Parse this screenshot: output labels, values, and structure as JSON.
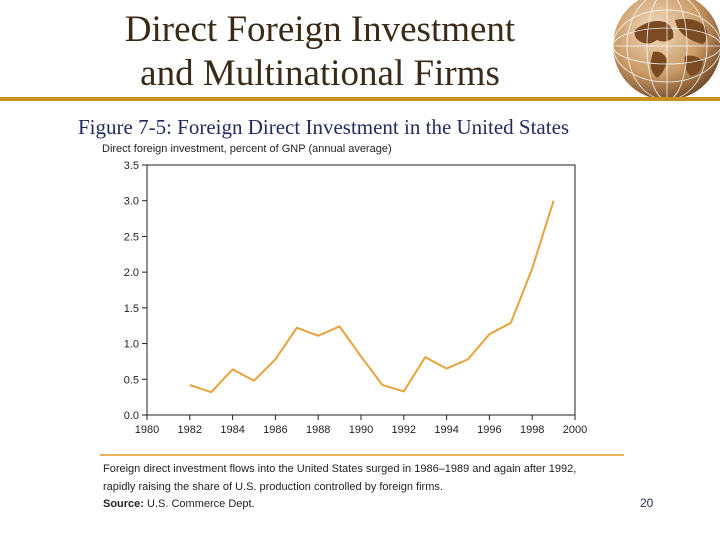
{
  "slide": {
    "title_line1": "Direct Foreign Investment",
    "title_line2": "and Multinational Firms",
    "figure_number": "Figure 7-5",
    "figure_title": ": Foreign Direct Investment in the United States",
    "caption_line1": "Foreign direct investment flows into the United States surged in 1986–1989 and again after 1992,",
    "caption_line2": "rapidly raising the share of U.S. production controlled by foreign firms.",
    "source_label": "Source:",
    "source_value": "U.S. Commerce Dept.",
    "page_number": "20"
  },
  "colors": {
    "accent": "#c8921f",
    "line": "#e8a23c",
    "heading": "#1f2a5e"
  },
  "chart_data": {
    "type": "line",
    "title": "",
    "ylabel": "Direct foreign investment, percent of GNP (annual average)",
    "xlabel": "",
    "xlim": [
      1980,
      2000
    ],
    "ylim": [
      0.0,
      3.5
    ],
    "x_ticks": [
      "1980",
      "1982",
      "1984",
      "1986",
      "1988",
      "1990",
      "1992",
      "1994",
      "1996",
      "1998",
      "2000"
    ],
    "y_ticks": [
      "0.0",
      "0.5",
      "1.0",
      "1.5",
      "2.0",
      "2.5",
      "3.0",
      "3.5"
    ],
    "grid": false,
    "series": [
      {
        "x": [
          1982,
          1983,
          1984,
          1985,
          1986,
          1987,
          1988,
          1989,
          1990,
          1991,
          1992,
          1993,
          1994,
          1995,
          1996,
          1997,
          1998,
          1999
        ],
        "values": [
          0.42,
          0.32,
          0.64,
          0.48,
          0.78,
          1.22,
          1.11,
          1.24,
          0.82,
          0.42,
          0.33,
          0.81,
          0.65,
          0.78,
          1.13,
          1.29,
          2.05,
          3.0
        ]
      }
    ]
  }
}
